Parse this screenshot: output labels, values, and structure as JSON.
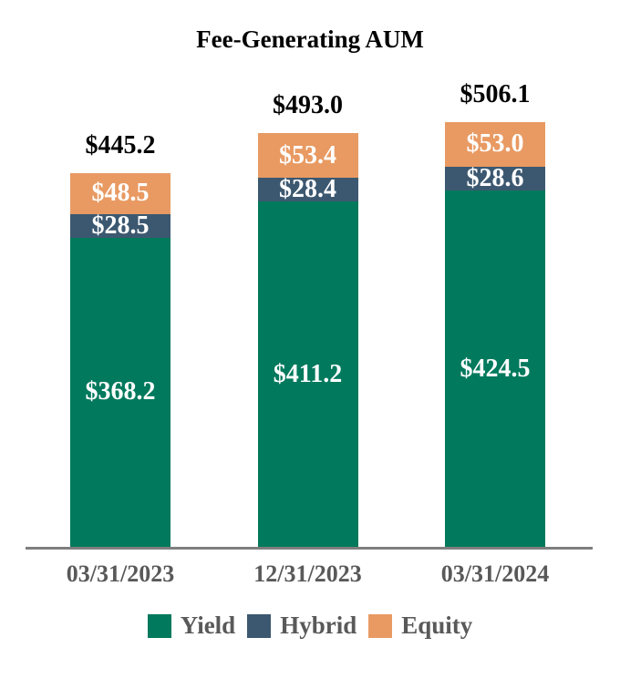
{
  "chart_data": {
    "type": "bar",
    "stacked": true,
    "title": "Fee-Generating AUM",
    "categories": [
      "03/31/2023",
      "12/31/2023",
      "03/31/2024"
    ],
    "series": [
      {
        "name": "Yield",
        "color": "#00795C",
        "values": [
          368.2,
          411.2,
          424.5
        ],
        "value_labels": [
          "$368.2",
          "$411.2",
          "$424.5"
        ]
      },
      {
        "name": "Hybrid",
        "color": "#3C5870",
        "values": [
          28.5,
          28.4,
          28.6
        ],
        "value_labels": [
          "$28.5",
          "$28.4",
          "$28.6"
        ]
      },
      {
        "name": "Equity",
        "color": "#E89A62",
        "values": [
          48.5,
          53.4,
          53.0
        ],
        "value_labels": [
          "$48.5",
          "$53.4",
          "$53.0"
        ]
      }
    ],
    "totals": [
      445.2,
      493.0,
      506.1
    ],
    "total_labels": [
      "$445.2",
      "$493.0",
      "$506.1"
    ],
    "legend": [
      "Yield",
      "Hybrid",
      "Equity"
    ],
    "legend_position": "bottom",
    "y_axis_visible": false,
    "axis_line_color": "#7F7F7F",
    "text_colors": {
      "title": "#000000",
      "totals": "#000000",
      "segment_values": "#FFFFFF",
      "category_labels": "#595959",
      "legend": "#595959"
    }
  }
}
